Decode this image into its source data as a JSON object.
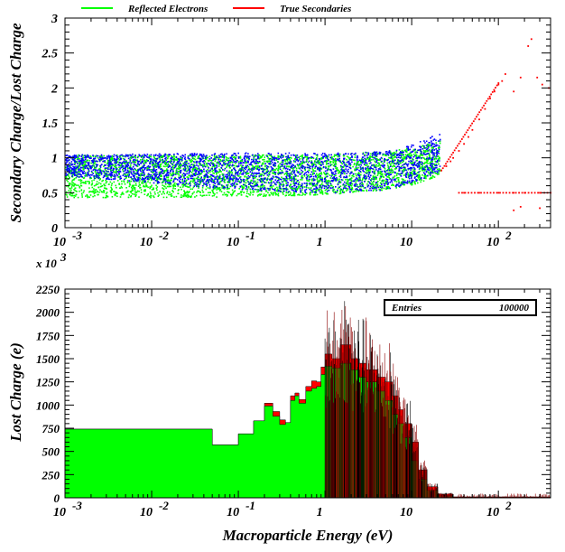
{
  "chart_data": [
    {
      "type": "scatter",
      "xscale": "log",
      "xlim": [
        0.001,
        400
      ],
      "ylim": [
        0,
        3
      ],
      "ylabel": "Secondary Charge/Lost Charge",
      "legend": {
        "placement": "top"
      },
      "x_ticks": [
        {
          "base": "10",
          "exp": "-3"
        },
        {
          "base": "10",
          "exp": "-2"
        },
        {
          "base": "10",
          "exp": "-1"
        },
        {
          "base": "1",
          "exp": ""
        },
        {
          "base": "10",
          "exp": ""
        },
        {
          "base": "10",
          "exp": "2"
        }
      ],
      "y_ticks": [
        "0",
        "0.5",
        "1",
        "1.5",
        "2",
        "2.5",
        "3"
      ],
      "series": [
        {
          "name": "Reflected Electrons",
          "color": "#00ff00",
          "description_points": {
            "band_lower_edge": [
              [
                0.01,
                0.44
              ],
              [
                0.1,
                0.45
              ],
              [
                1,
                0.48
              ],
              [
                5,
                0.55
              ],
              [
                10,
                0.62
              ],
              [
                20,
                0.75
              ]
            ],
            "band_upper_edge": [
              [
                0.001,
                1.05
              ],
              [
                0.1,
                1.05
              ],
              [
                1,
                1.05
              ],
              [
                5,
                1.1
              ],
              [
                10,
                1.15
              ],
              [
                20,
                1.25
              ]
            ]
          }
        },
        {
          "name": "True Secondaries",
          "color": "#ff0000",
          "points": [
            [
              22,
              0.82
            ],
            [
              25,
              0.88
            ],
            [
              28,
              0.95
            ],
            [
              30,
              1.0
            ],
            [
              35,
              1.1
            ],
            [
              40,
              1.2
            ],
            [
              45,
              1.3
            ],
            [
              50,
              1.4
            ],
            [
              60,
              1.55
            ],
            [
              70,
              1.7
            ],
            [
              80,
              1.85
            ],
            [
              90,
              1.95
            ],
            [
              100,
              2.05
            ],
            [
              110,
              2.1
            ],
            [
              120,
              2.2
            ],
            [
              150,
              1.95
            ],
            [
              180,
              2.15
            ],
            [
              220,
              2.6
            ],
            [
              240,
              2.7
            ],
            [
              280,
              2.15
            ],
            [
              320,
              2.05
            ],
            [
              380,
              2.0
            ],
            [
              40,
              0.5
            ],
            [
              60,
              0.5
            ],
            [
              100,
              0.5
            ],
            [
              150,
              0.5
            ],
            [
              200,
              0.5
            ],
            [
              300,
              0.5
            ],
            [
              150,
              0.25
            ],
            [
              180,
              0.3
            ],
            [
              300,
              0.28
            ]
          ]
        },
        {
          "name": "",
          "color": "#0000ff",
          "description_points": {
            "band_lower_edge": [
              [
                0.001,
                0.75
              ],
              [
                0.1,
                0.55
              ],
              [
                1,
                0.5
              ],
              [
                5,
                0.55
              ],
              [
                10,
                0.65
              ],
              [
                20,
                0.8
              ]
            ],
            "band_upper_edge": [
              [
                0.001,
                1.05
              ],
              [
                0.1,
                1.08
              ],
              [
                1,
                1.08
              ],
              [
                5,
                1.1
              ],
              [
                10,
                1.2
              ],
              [
                20,
                1.35
              ]
            ]
          }
        }
      ]
    },
    {
      "type": "area",
      "xscale": "log",
      "xlim": [
        0.001,
        400
      ],
      "ylim": [
        0,
        2250
      ],
      "xlabel": "Macroparticle Energy (eV)",
      "ylabel": "Lost Charge (e)",
      "y_multiplier": "x 10",
      "y_multiplier_exp": "3",
      "x_ticks": [
        {
          "base": "10",
          "exp": "-3"
        },
        {
          "base": "10",
          "exp": "-2"
        },
        {
          "base": "10",
          "exp": "-1"
        },
        {
          "base": "1",
          "exp": ""
        },
        {
          "base": "10",
          "exp": ""
        },
        {
          "base": "10",
          "exp": "2"
        }
      ],
      "y_ticks": [
        "0",
        "250",
        "500",
        "750",
        "1000",
        "1250",
        "1500",
        "1750",
        "2000",
        "2250"
      ],
      "stats": {
        "label": "Entries",
        "value": "100000"
      },
      "series": [
        {
          "name": "Reflected Electrons",
          "color": "#00ff00",
          "x": [
            0.001,
            0.05,
            0.1,
            0.15,
            0.2,
            0.25,
            0.3,
            0.35,
            0.4,
            0.45,
            0.5,
            0.6,
            0.7,
            0.8,
            0.9,
            1.0,
            1.2,
            1.5,
            2,
            2.5,
            3,
            4,
            5,
            6,
            7,
            8,
            10,
            12,
            15,
            20,
            30,
            400
          ],
          "values": [
            740,
            570,
            690,
            830,
            990,
            880,
            790,
            810,
            1050,
            1100,
            1020,
            1150,
            1180,
            1200,
            1330,
            1420,
            1400,
            1450,
            1380,
            1300,
            1250,
            1150,
            1050,
            900,
            800,
            650,
            400,
            200,
            80,
            20,
            5,
            5
          ]
        },
        {
          "name": "True Secondaries",
          "color": "#ff0000",
          "x": [
            0.001,
            0.05,
            0.1,
            0.15,
            0.2,
            0.25,
            0.3,
            0.35,
            0.4,
            0.45,
            0.5,
            0.6,
            0.7,
            0.8,
            0.9,
            1.0,
            1.2,
            1.5,
            2,
            2.5,
            3,
            4,
            5,
            6,
            7,
            8,
            10,
            12,
            15,
            20,
            30,
            400
          ],
          "values": [
            740,
            570,
            690,
            830,
            1020,
            930,
            840,
            810,
            1100,
            1130,
            1060,
            1200,
            1260,
            1250,
            1410,
            1550,
            1500,
            1650,
            1500,
            1450,
            1380,
            1300,
            1250,
            1100,
            950,
            800,
            600,
            300,
            120,
            40,
            10,
            10
          ]
        }
      ]
    }
  ],
  "legend": {
    "items": [
      {
        "label": "Reflected Electrons",
        "color": "#00ff00"
      },
      {
        "label": "True Secondaries",
        "color": "#ff0000"
      }
    ]
  }
}
